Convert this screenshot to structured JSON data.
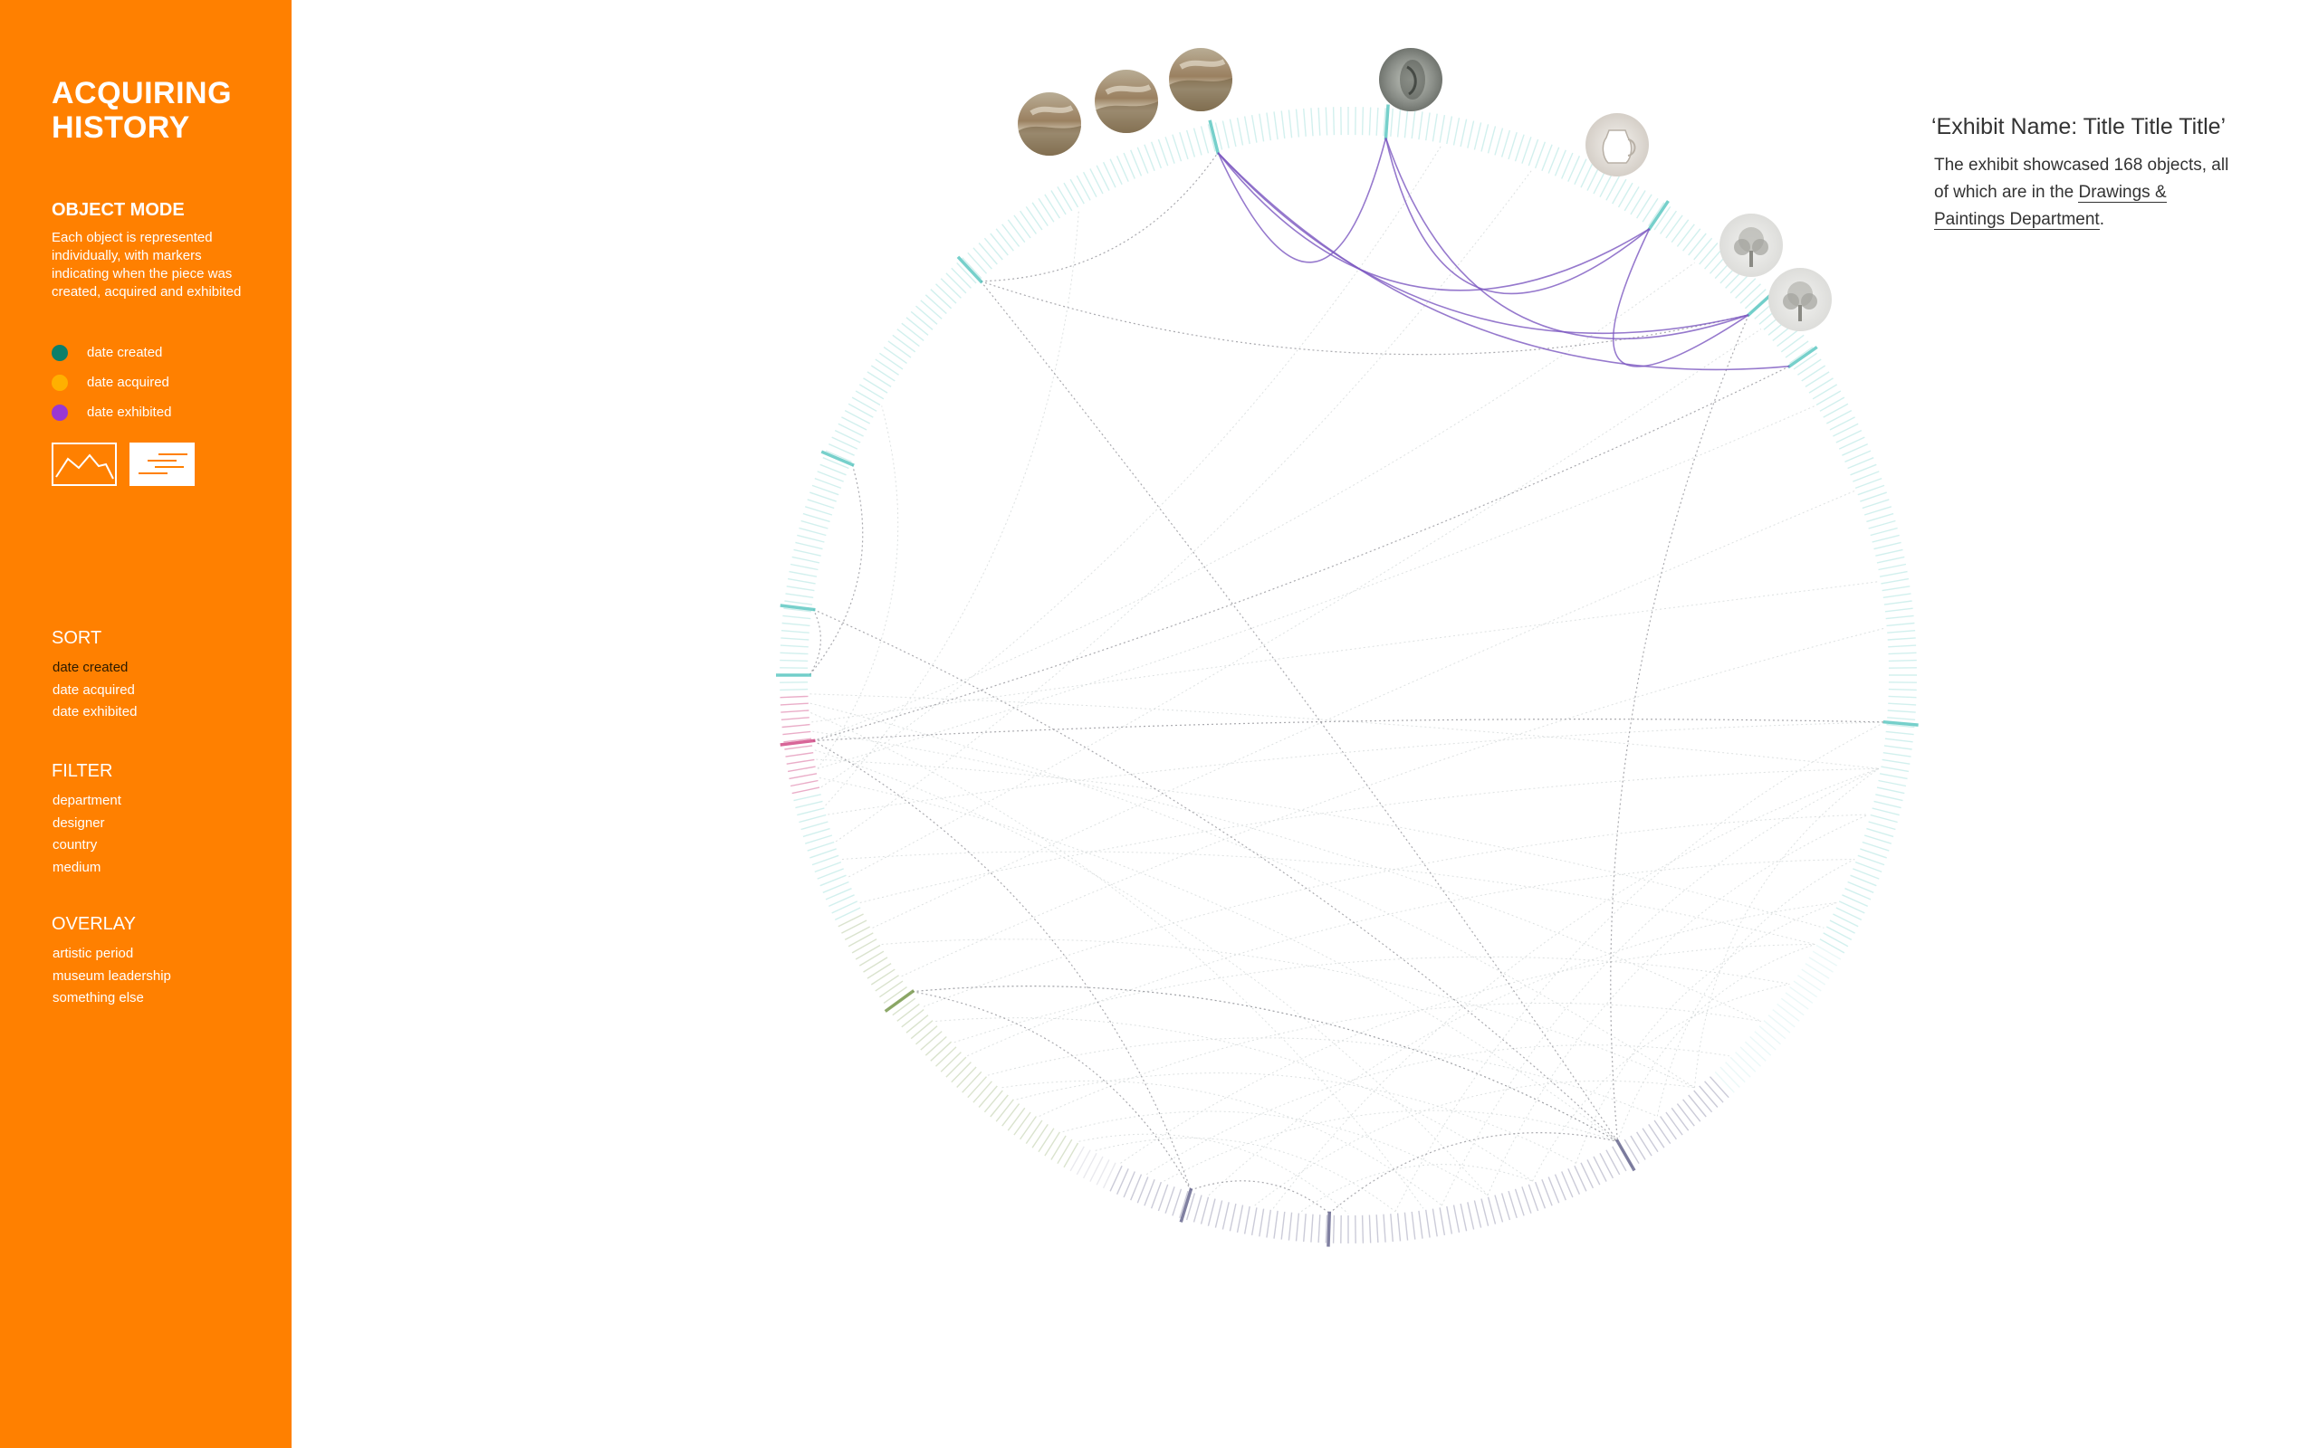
{
  "sidebar": {
    "title": "ACQUIRING HISTORY",
    "mode_title": "OBJECT MODE",
    "mode_description": "Each object is represented individually, with markers indicating when the piece was created, acquired and exhibited",
    "legend": [
      {
        "label": "date created",
        "color": "#0b7f6a"
      },
      {
        "label": "date acquired",
        "color": "#ffb000"
      },
      {
        "label": "date exhibited",
        "color": "#9a38d2"
      }
    ],
    "sort": {
      "title": "SORT",
      "options": [
        "date created",
        "date acquired",
        "date exhibited"
      ],
      "active": "date created"
    },
    "filter": {
      "title": "FILTER",
      "options": [
        "department",
        "designer",
        "country",
        "medium"
      ]
    },
    "overlay": {
      "title": "OVERLAY",
      "options": [
        "artistic period",
        "museum leadership",
        "something else"
      ]
    }
  },
  "exhibit": {
    "title": "‘Exhibit Name: Title Title Title’",
    "desc_prefix": "The exhibit showcased 168 objects, all of which are in the",
    "department_link": "Drawings & Paintings Department",
    "desc_suffix": "."
  },
  "colors": {
    "brand": "#ff8000",
    "ring_teal": "#5ec8c2",
    "ring_pink": "#d14a86",
    "ring_olive": "#7a9a50",
    "ring_slate": "#6a6a90",
    "arc_exhibit": "#7c57c0"
  },
  "thumbnails": [
    {
      "name": "landscape-painting-thumbnail"
    },
    {
      "name": "landscape-painting-thumbnail"
    },
    {
      "name": "landscape-painting-thumbnail"
    },
    {
      "name": "portrait-drawing-thumbnail"
    },
    {
      "name": "glass-pitcher-thumbnail"
    },
    {
      "name": "tree-drawing-thumbnail"
    },
    {
      "name": "tree-drawing-thumbnail"
    }
  ]
}
